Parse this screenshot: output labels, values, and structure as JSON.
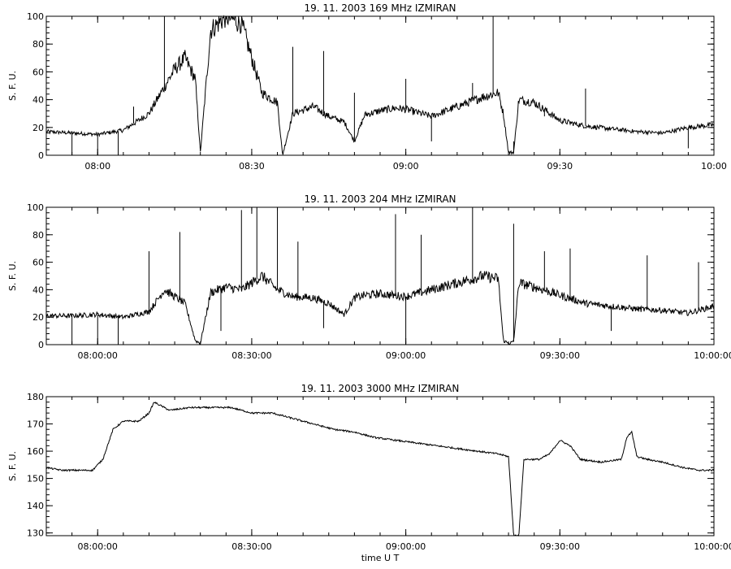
{
  "chart_data": [
    {
      "type": "line",
      "title": "19.  11.  2003    169 MHz    IZMIRAN",
      "ylabel": "S. F. U.",
      "xlabel": "",
      "xlim": [
        "07:50",
        "10:00"
      ],
      "ylim": [
        0,
        100
      ],
      "grid": false,
      "xtick_labels": [
        "08:00",
        "08:30",
        "09:00",
        "09:30",
        "10:00"
      ],
      "ytick_labels": [
        "0",
        "20",
        "40",
        "60",
        "80",
        "100"
      ],
      "series": [
        {
          "x": [
            "07:50",
            "07:55",
            "08:00",
            "08:05",
            "08:10",
            "08:15",
            "08:17",
            "08:19",
            "08:20",
            "08:22",
            "08:25",
            "08:28",
            "08:32",
            "08:35",
            "08:36",
            "08:38",
            "08:42",
            "08:45",
            "08:48",
            "08:50",
            "08:52",
            "08:55",
            "08:58",
            "09:00",
            "09:05",
            "09:10",
            "09:15",
            "09:18",
            "09:19",
            "09:20",
            "09:21",
            "09:22",
            "09:25",
            "09:30",
            "09:35",
            "09:40",
            "09:45",
            "09:50",
            "09:55",
            "10:00"
          ],
          "values": [
            17,
            16,
            15,
            18,
            30,
            62,
            70,
            55,
            2,
            90,
            100,
            95,
            45,
            38,
            0,
            30,
            35,
            28,
            24,
            10,
            29,
            32,
            34,
            33,
            28,
            35,
            42,
            45,
            30,
            2,
            2,
            40,
            38,
            25,
            21,
            19,
            17,
            16,
            20,
            22
          ],
          "spikes": [
            {
              "x": "07:55",
              "y": 0
            },
            {
              "x": "08:00",
              "y": 0
            },
            {
              "x": "08:04",
              "y": 0
            },
            {
              "x": "08:07",
              "y": 35
            },
            {
              "x": "08:13",
              "y": 100
            },
            {
              "x": "08:24",
              "y": 100
            },
            {
              "x": "08:38",
              "y": 78
            },
            {
              "x": "08:44",
              "y": 75
            },
            {
              "x": "08:50",
              "y": 45
            },
            {
              "x": "09:00",
              "y": 55
            },
            {
              "x": "09:05",
              "y": 10
            },
            {
              "x": "09:13",
              "y": 52
            },
            {
              "x": "09:17",
              "y": 100
            },
            {
              "x": "09:21",
              "y": 10
            },
            {
              "x": "09:27",
              "y": 28
            },
            {
              "x": "09:35",
              "y": 48
            },
            {
              "x": "09:55",
              "y": 5
            }
          ]
        }
      ]
    },
    {
      "type": "line",
      "title": "19.  11.  2003    204 MHz    IZMIRAN",
      "ylabel": "S. F. U.",
      "xlabel": "",
      "xlim": [
        "07:50",
        "10:00"
      ],
      "ylim": [
        0,
        100
      ],
      "grid": false,
      "xtick_labels": [
        "08:00:00",
        "08:30:00",
        "09:00:00",
        "09:30:00",
        "10:00:00"
      ],
      "ytick_labels": [
        "0",
        "20",
        "40",
        "60",
        "80",
        "100"
      ],
      "series": [
        {
          "x": [
            "07:50",
            "07:55",
            "08:00",
            "08:05",
            "08:10",
            "08:13",
            "08:15",
            "08:17",
            "08:19",
            "08:20",
            "08:22",
            "08:25",
            "08:28",
            "08:30",
            "08:32",
            "08:35",
            "08:38",
            "08:42",
            "08:45",
            "08:48",
            "08:50",
            "08:52",
            "08:55",
            "09:00",
            "09:05",
            "09:10",
            "09:15",
            "09:18",
            "09:19",
            "09:20",
            "09:21",
            "09:22",
            "09:25",
            "09:30",
            "09:35",
            "09:40",
            "09:45",
            "09:50",
            "09:55",
            "10:00"
          ],
          "values": [
            21,
            21,
            22,
            20,
            24,
            40,
            35,
            30,
            3,
            1,
            38,
            42,
            40,
            45,
            50,
            40,
            35,
            34,
            30,
            22,
            34,
            36,
            37,
            35,
            40,
            45,
            50,
            48,
            3,
            1,
            2,
            45,
            42,
            36,
            30,
            28,
            26,
            25,
            23,
            28
          ],
          "spikes": [
            {
              "x": "07:55",
              "y": 0
            },
            {
              "x": "08:00",
              "y": 0
            },
            {
              "x": "08:04",
              "y": 0
            },
            {
              "x": "08:10",
              "y": 68
            },
            {
              "x": "08:16",
              "y": 82
            },
            {
              "x": "08:24",
              "y": 10
            },
            {
              "x": "08:28",
              "y": 98
            },
            {
              "x": "08:31",
              "y": 100
            },
            {
              "x": "08:35",
              "y": 100
            },
            {
              "x": "08:39",
              "y": 75
            },
            {
              "x": "08:44",
              "y": 12
            },
            {
              "x": "08:58",
              "y": 95
            },
            {
              "x": "09:00",
              "y": 1
            },
            {
              "x": "09:03",
              "y": 80
            },
            {
              "x": "09:13",
              "y": 100
            },
            {
              "x": "09:21",
              "y": 88
            },
            {
              "x": "09:27",
              "y": 68
            },
            {
              "x": "09:32",
              "y": 70
            },
            {
              "x": "09:40",
              "y": 10
            },
            {
              "x": "09:47",
              "y": 65
            },
            {
              "x": "09:57",
              "y": 60
            }
          ]
        }
      ]
    },
    {
      "type": "line",
      "title": "19.  11.  2003    3000 MHz    IZMIRAN",
      "ylabel": "S. F. U.",
      "xlabel": "time  U T",
      "xlim": [
        "07:50",
        "10:00"
      ],
      "ylim": [
        129,
        180
      ],
      "grid": false,
      "xtick_labels": [
        "08:00:00",
        "08:30:00",
        "09:00:00",
        "09:30:00",
        "10:00:00"
      ],
      "ytick_labels": [
        "130",
        "140",
        "150",
        "160",
        "170",
        "180"
      ],
      "series": [
        {
          "x": [
            "07:50",
            "07:53",
            "07:57",
            "07:59",
            "08:01",
            "08:03",
            "08:05",
            "08:08",
            "08:10",
            "08:11",
            "08:14",
            "08:18",
            "08:22",
            "08:26",
            "08:30",
            "08:34",
            "08:38",
            "08:42",
            "08:46",
            "08:50",
            "08:54",
            "08:58",
            "09:02",
            "09:06",
            "09:10",
            "09:14",
            "09:18",
            "09:20",
            "09:21",
            "09:22",
            "09:23",
            "09:24",
            "09:26",
            "09:28",
            "09:30",
            "09:32",
            "09:34",
            "09:38",
            "09:42",
            "09:43",
            "09:44",
            "09:45",
            "09:47",
            "09:50",
            "09:54",
            "09:57",
            "10:00"
          ],
          "values": [
            154,
            153,
            153,
            153,
            157,
            168,
            171,
            171,
            174,
            178,
            175,
            176,
            176,
            176,
            174,
            174,
            172,
            170,
            168,
            167,
            165,
            164,
            163,
            162,
            161,
            160,
            159,
            158,
            129,
            129,
            157,
            157,
            157,
            159,
            164,
            162,
            157,
            156,
            157,
            165,
            167,
            158,
            157,
            156,
            154,
            153,
            153
          ]
        }
      ]
    }
  ]
}
